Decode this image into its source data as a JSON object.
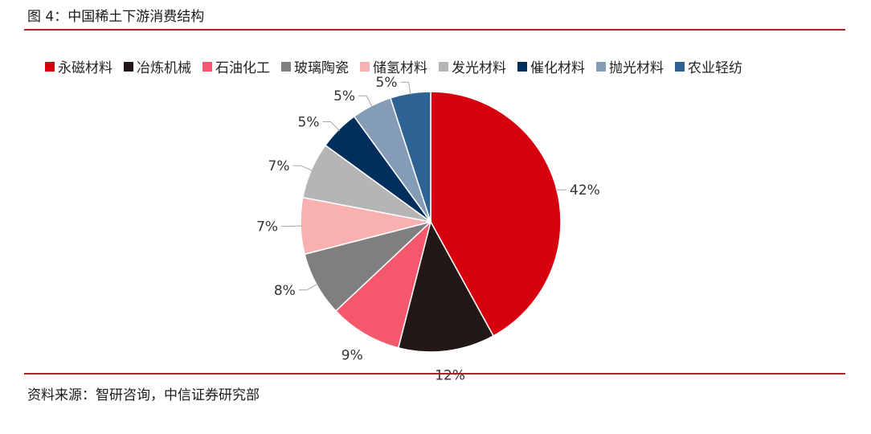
{
  "header": {
    "title": "图 4：中国稀土下游消费结构"
  },
  "footer": {
    "source": "资料来源：智研咨询，中信证券研究部"
  },
  "chart_data": {
    "type": "pie",
    "title": "",
    "legend_position": "top",
    "start_angle": "12 o'clock, clockwise",
    "slices": [
      {
        "name": "永磁材料",
        "value": 42,
        "label": "42%",
        "color": "#d7000f"
      },
      {
        "name": "冶炼机械",
        "value": 12,
        "label": "12%",
        "color": "#231815"
      },
      {
        "name": "石油化工",
        "value": 9,
        "label": "9%",
        "color": "#f5576c"
      },
      {
        "name": "玻璃陶瓷",
        "value": 8,
        "label": "8%",
        "color": "#7f7f7f"
      },
      {
        "name": "储氢材料",
        "value": 7,
        "label": "7%",
        "color": "#f8b0b0"
      },
      {
        "name": "发光材料",
        "value": 7,
        "label": "7%",
        "color": "#b5b5b5"
      },
      {
        "name": "催化材料",
        "value": 5,
        "label": "5%",
        "color": "#002f5e"
      },
      {
        "name": "抛光材料",
        "value": 5,
        "label": "5%",
        "color": "#849cb6"
      },
      {
        "name": "农业轻纺",
        "value": 5,
        "label": "5%",
        "color": "#2e6293"
      }
    ]
  }
}
